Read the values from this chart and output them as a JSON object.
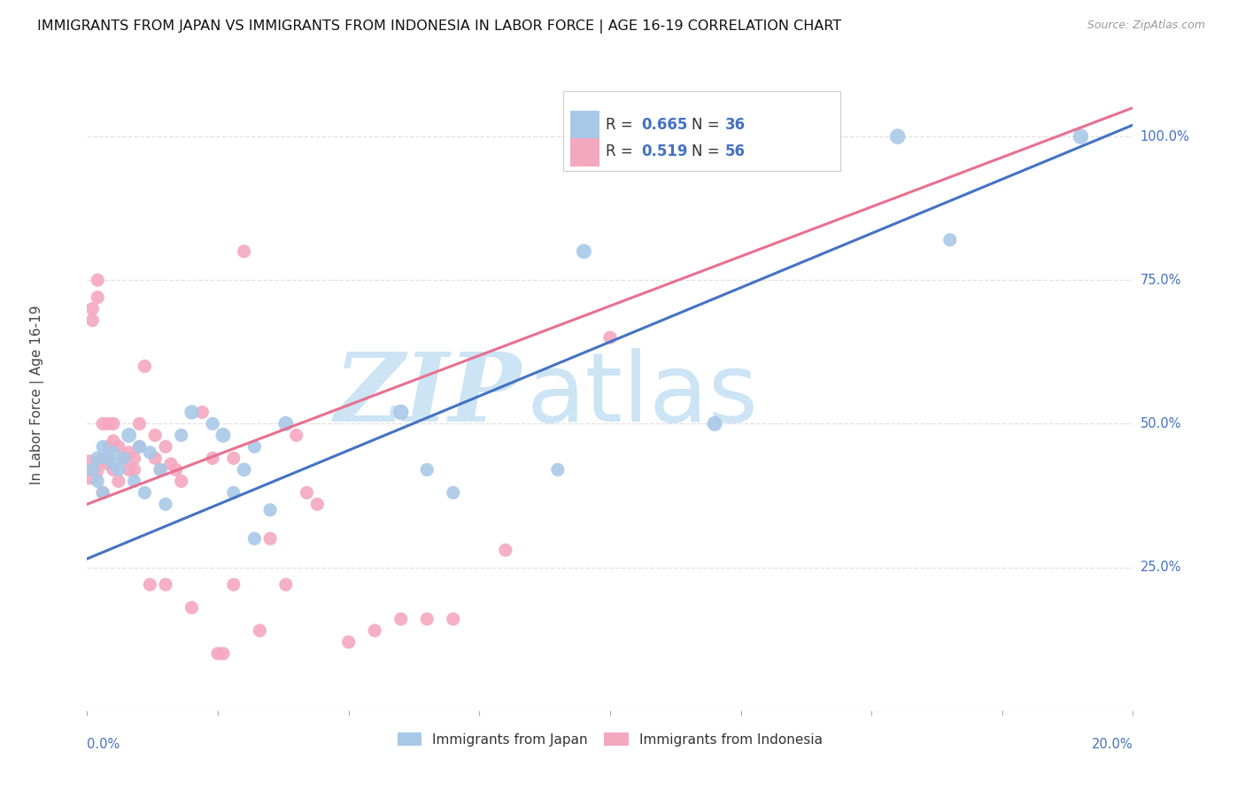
{
  "title": "IMMIGRANTS FROM JAPAN VS IMMIGRANTS FROM INDONESIA IN LABOR FORCE | AGE 16-19 CORRELATION CHART",
  "source": "Source: ZipAtlas.com",
  "ylabel": "In Labor Force | Age 16-19",
  "R_japan": 0.665,
  "N_japan": 36,
  "R_indonesia": 0.519,
  "N_indonesia": 56,
  "color_japan": "#a8c8e8",
  "color_indonesia": "#f4a8c0",
  "line_color_japan": "#4472c4",
  "line_color_indonesia": "#e87090",
  "watermark_zip": "ZIP",
  "watermark_atlas": "atlas",
  "watermark_color": "#cce4f4",
  "background_color": "#ffffff",
  "grid_color": "#e0e0e0",
  "legend_label_japan": "Immigrants from Japan",
  "legend_label_indonesia": "Immigrants from Indonesia",
  "ytick_values": [
    0.25,
    0.5,
    0.75,
    1.0
  ],
  "ytick_labels": [
    "25.0%",
    "50.0%",
    "75.0%",
    "100.0%"
  ],
  "xmin": 0.0,
  "xmax": 0.2,
  "ymin": 0.0,
  "ymax": 1.1,
  "japan_line_x0": 0.0,
  "japan_line_y0": 0.265,
  "japan_line_x1": 0.2,
  "japan_line_y1": 1.02,
  "indonesia_line_x0": 0.0,
  "indonesia_line_y0": 0.36,
  "indonesia_line_x1": 0.2,
  "indonesia_line_y1": 1.05,
  "japan_x": [
    0.001,
    0.002,
    0.002,
    0.003,
    0.003,
    0.004,
    0.005,
    0.005,
    0.006,
    0.007,
    0.008,
    0.009,
    0.01,
    0.011,
    0.012,
    0.014,
    0.015,
    0.018,
    0.02,
    0.024,
    0.026,
    0.028,
    0.03,
    0.032,
    0.032,
    0.035,
    0.038,
    0.06,
    0.065,
    0.07,
    0.09,
    0.095,
    0.12,
    0.155,
    0.165,
    0.19
  ],
  "japan_y": [
    0.42,
    0.44,
    0.4,
    0.46,
    0.38,
    0.44,
    0.45,
    0.43,
    0.42,
    0.44,
    0.48,
    0.4,
    0.46,
    0.38,
    0.45,
    0.42,
    0.36,
    0.48,
    0.52,
    0.5,
    0.48,
    0.38,
    0.42,
    0.3,
    0.46,
    0.35,
    0.5,
    0.52,
    0.42,
    0.38,
    0.42,
    0.8,
    0.5,
    1.0,
    0.82,
    1.0
  ],
  "japan_sizes": [
    120,
    130,
    120,
    120,
    120,
    120,
    120,
    120,
    120,
    120,
    150,
    120,
    120,
    120,
    120,
    120,
    120,
    120,
    140,
    120,
    150,
    120,
    130,
    120,
    120,
    120,
    150,
    160,
    120,
    120,
    120,
    150,
    150,
    160,
    120,
    160
  ],
  "indonesia_x": [
    0.0003,
    0.001,
    0.001,
    0.002,
    0.002,
    0.003,
    0.003,
    0.003,
    0.004,
    0.004,
    0.004,
    0.005,
    0.005,
    0.005,
    0.006,
    0.006,
    0.007,
    0.007,
    0.008,
    0.008,
    0.009,
    0.009,
    0.01,
    0.01,
    0.011,
    0.012,
    0.013,
    0.013,
    0.014,
    0.015,
    0.015,
    0.016,
    0.017,
    0.018,
    0.02,
    0.022,
    0.024,
    0.025,
    0.026,
    0.028,
    0.028,
    0.03,
    0.033,
    0.035,
    0.038,
    0.04,
    0.042,
    0.044,
    0.05,
    0.055,
    0.06,
    0.065,
    0.07,
    0.08,
    0.1,
    0.12
  ],
  "indonesia_y": [
    0.42,
    0.7,
    0.68,
    0.75,
    0.72,
    0.5,
    0.44,
    0.38,
    0.46,
    0.43,
    0.5,
    0.5,
    0.47,
    0.42,
    0.46,
    0.4,
    0.44,
    0.44,
    0.45,
    0.42,
    0.44,
    0.42,
    0.5,
    0.46,
    0.6,
    0.22,
    0.48,
    0.44,
    0.42,
    0.22,
    0.46,
    0.43,
    0.42,
    0.4,
    0.18,
    0.52,
    0.44,
    0.1,
    0.1,
    0.22,
    0.44,
    0.8,
    0.14,
    0.3,
    0.22,
    0.48,
    0.38,
    0.36,
    0.12,
    0.14,
    0.16,
    0.16,
    0.16,
    0.28,
    0.65,
    1.0
  ],
  "indonesia_sizes": [
    600,
    120,
    120,
    120,
    120,
    120,
    120,
    120,
    120,
    120,
    120,
    120,
    120,
    120,
    120,
    120,
    120,
    120,
    120,
    120,
    120,
    120,
    120,
    120,
    120,
    120,
    120,
    120,
    120,
    120,
    120,
    120,
    120,
    120,
    120,
    120,
    120,
    120,
    120,
    120,
    120,
    120,
    120,
    120,
    120,
    120,
    120,
    120,
    120,
    120,
    120,
    120,
    120,
    120,
    120,
    120
  ],
  "tick_label_color": "#4472c4",
  "ylabel_color": "#444444",
  "title_fontsize": 11.5,
  "source_fontsize": 9,
  "axis_label_fontsize": 10.5
}
